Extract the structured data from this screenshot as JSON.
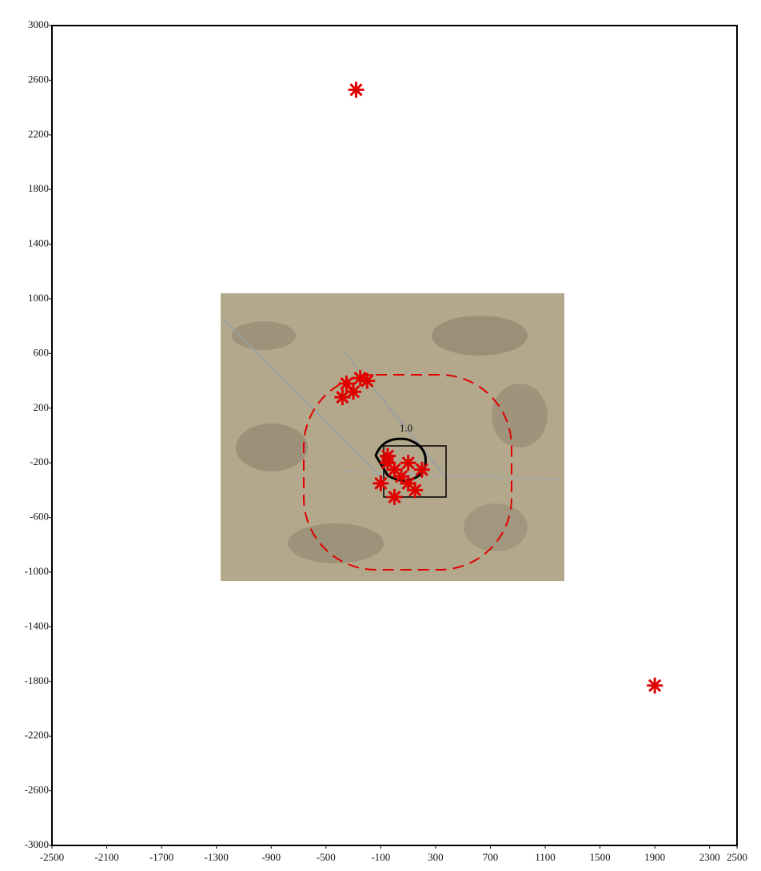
{
  "chart_data": {
    "type": "scatter",
    "annotations": [
      "1.0"
    ],
    "xlim": [
      -2500,
      2500
    ],
    "xticks": [
      -2500,
      -2100,
      -1700,
      -1300,
      -900,
      -500,
      -100,
      300,
      700,
      1100,
      1500,
      1900,
      2300,
      2500
    ],
    "ylim": [
      -3000,
      3000
    ],
    "yticks": [
      -3000,
      -2600,
      -2200,
      -1800,
      -1400,
      -1000,
      -600,
      -200,
      200,
      600,
      1000,
      1400,
      1800,
      2200,
      2600,
      3000
    ],
    "series": [
      {
        "color": "#e00000",
        "x": [
          -280,
          1900,
          -350,
          -300,
          -250,
          -380,
          -200,
          -50,
          0,
          50,
          -100,
          100,
          150,
          0,
          200,
          -50,
          100
        ],
        "values": [
          2530,
          -1830,
          380,
          320,
          420,
          280,
          400,
          -200,
          -250,
          -300,
          -350,
          -200,
          -400,
          -450,
          -250,
          -150,
          -350
        ]
      }
    ]
  }
}
